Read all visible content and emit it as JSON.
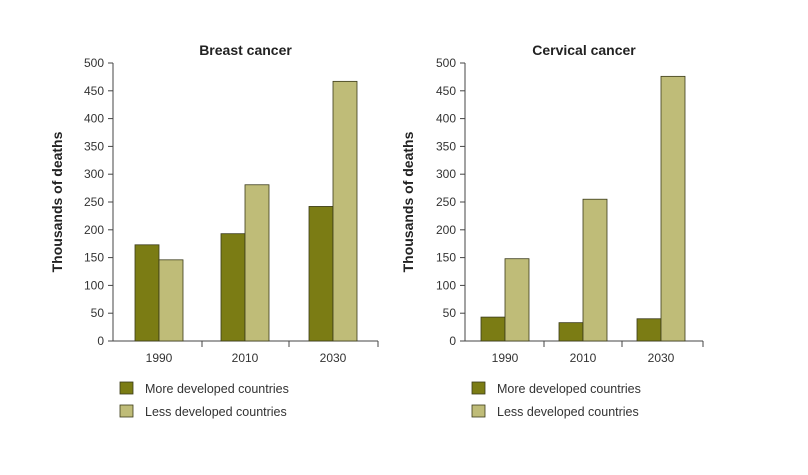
{
  "chart_data": [
    {
      "type": "bar",
      "title": "Breast cancer",
      "ylabel": "Thousands of deaths",
      "xlabel": "",
      "categories": [
        "1990",
        "2010",
        "2030"
      ],
      "ylim": [
        0,
        500
      ],
      "yticks": [
        0,
        50,
        100,
        150,
        200,
        250,
        300,
        350,
        400,
        450,
        500
      ],
      "legend_position": "bottom-left",
      "series": [
        {
          "name": "More developed countries",
          "values": [
            173,
            193,
            242
          ],
          "color": "#7b7c14"
        },
        {
          "name": "Less developed countries",
          "values": [
            146,
            281,
            467
          ],
          "color": "#bfbc78"
        }
      ]
    },
    {
      "type": "bar",
      "title": "Cervical cancer",
      "ylabel": "Thousands of deaths",
      "xlabel": "",
      "categories": [
        "1990",
        "2010",
        "2030"
      ],
      "ylim": [
        0,
        500
      ],
      "yticks": [
        0,
        50,
        100,
        150,
        200,
        250,
        300,
        350,
        400,
        450,
        500
      ],
      "legend_position": "bottom-left",
      "series": [
        {
          "name": "More developed countries",
          "values": [
            43,
            33,
            40
          ],
          "color": "#7b7c14"
        },
        {
          "name": "Less developed countries",
          "values": [
            148,
            255,
            476
          ],
          "color": "#bfbc78"
        }
      ]
    }
  ]
}
